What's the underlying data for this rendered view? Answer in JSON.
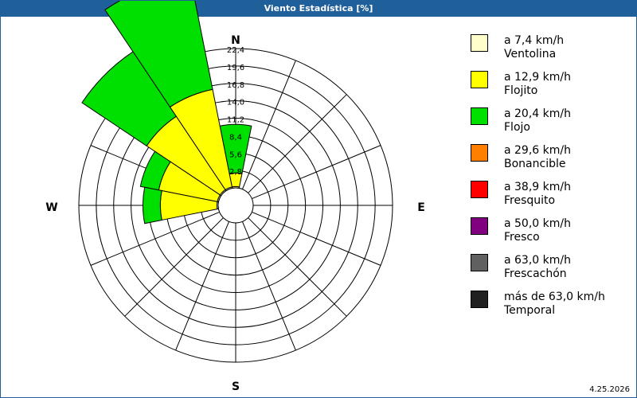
{
  "window": {
    "title": "Viento Estadística [%]"
  },
  "chart_data": {
    "type": "wind-rose",
    "title": "Viento Estadística [%]",
    "directions": [
      "N",
      "E",
      "S",
      "W"
    ],
    "radial_ticks": [
      "2,8",
      "5,6",
      "8,4",
      "11,2",
      "14,0",
      "16,8",
      "19,6",
      "22,4"
    ],
    "rmax": 22.4,
    "sector_width_deg": 22.5,
    "sectors": [
      {
        "dir_deg": 0,
        "bands": [
          0.2,
          2.2,
          7.8
        ]
      },
      {
        "dir_deg": 337.5,
        "bands": [
          0.2,
          16.0,
          18.8
        ]
      },
      {
        "dir_deg": 315,
        "bands": [
          0.2,
          14.2,
          12.5
        ]
      },
      {
        "dir_deg": 292.5,
        "bands": [
          0.2,
          9.6,
          3.0
        ]
      },
      {
        "dir_deg": 270,
        "bands": [
          0.2,
          9.1,
          2.8
        ]
      }
    ],
    "legend": [
      {
        "speed": "a 7,4 km/h",
        "name": "Ventolina",
        "color": "#ffffcc"
      },
      {
        "speed": "a 12,9 km/h",
        "name": "Flojito",
        "color": "#ffff00"
      },
      {
        "speed": "a 20,4 km/h",
        "name": "Flojo",
        "color": "#00e000"
      },
      {
        "speed": "a 29,6 km/h",
        "name": "Bonancible",
        "color": "#ff8000"
      },
      {
        "speed": "a 38,9 km/h",
        "name": "Fresquito",
        "color": "#ff0000"
      },
      {
        "speed": "a 50,0 km/h",
        "name": "Fresco",
        "color": "#800080"
      },
      {
        "speed": "a 63,0 km/h",
        "name": "Frescachón",
        "color": "#606060"
      },
      {
        "speed": "más de 63,0 km/h",
        "name": "Temporal",
        "color": "#202020"
      }
    ]
  },
  "footer": {
    "date": "4.25.2026"
  }
}
